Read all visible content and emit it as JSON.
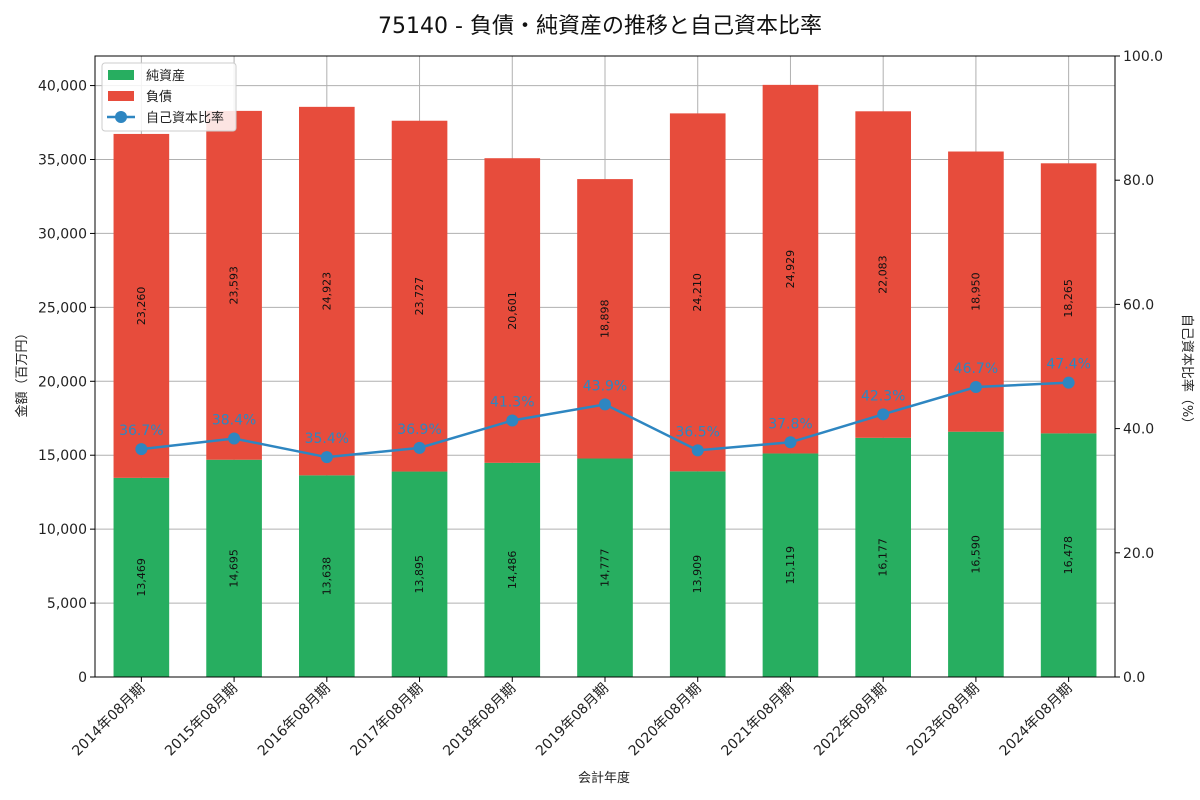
{
  "chart_data": {
    "type": "bar",
    "stacked": true,
    "title": "75140 - 負債・純資産の推移と自己資本比率",
    "xlabel": "会計年度",
    "ylabel": "金額（百万円）",
    "y2label": "自己資本比率（%）",
    "ylim": [
      0,
      42000
    ],
    "y2lim": [
      0,
      100
    ],
    "yticks": [
      0,
      5000,
      10000,
      15000,
      20000,
      25000,
      30000,
      35000,
      40000
    ],
    "yticks_labels": [
      "0",
      "5,000",
      "10,000",
      "15,000",
      "20,000",
      "25,000",
      "30,000",
      "35,000",
      "40,000"
    ],
    "y2ticks": [
      0,
      20,
      40,
      60,
      80,
      100
    ],
    "y2ticks_labels": [
      "0.0",
      "20.0",
      "40.0",
      "60.0",
      "80.0",
      "100.0"
    ],
    "grid": true,
    "legend_position": "top-left",
    "categories": [
      "2014年08月期",
      "2015年08月期",
      "2016年08月期",
      "2017年08月期",
      "2018年08月期",
      "2019年08月期",
      "2020年08月期",
      "2021年08月期",
      "2022年08月期",
      "2023年08月期",
      "2024年08月期"
    ],
    "series": [
      {
        "name": "純資産",
        "type": "bar",
        "color": "#27ae60",
        "values": [
          13469,
          14695,
          13638,
          13895,
          14486,
          14777,
          13909,
          15119,
          16177,
          16590,
          16478
        ],
        "labels": [
          "13,469",
          "14,695",
          "13,638",
          "13,895",
          "14,486",
          "14,777",
          "13,909",
          "15,119",
          "16,177",
          "16,590",
          "16,478"
        ]
      },
      {
        "name": "負債",
        "type": "bar",
        "color": "#e74c3c",
        "values": [
          23260,
          23593,
          24923,
          23727,
          20601,
          18898,
          24210,
          24929,
          22083,
          18950,
          18265
        ],
        "labels": [
          "23,260",
          "23,593",
          "24,923",
          "23,727",
          "20,601",
          "18,898",
          "24,210",
          "24,929",
          "22,083",
          "18,950",
          "18,265"
        ]
      },
      {
        "name": "自己資本比率",
        "type": "line",
        "axis": "right",
        "color": "#2e86c1",
        "values": [
          36.7,
          38.4,
          35.4,
          36.9,
          41.3,
          43.9,
          36.5,
          37.8,
          42.3,
          46.7,
          47.4
        ],
        "labels": [
          "36.7%",
          "38.4%",
          "35.4%",
          "36.9%",
          "41.3%",
          "43.9%",
          "36.5%",
          "37.8%",
          "42.3%",
          "46.7%",
          "47.4%"
        ]
      }
    ]
  }
}
